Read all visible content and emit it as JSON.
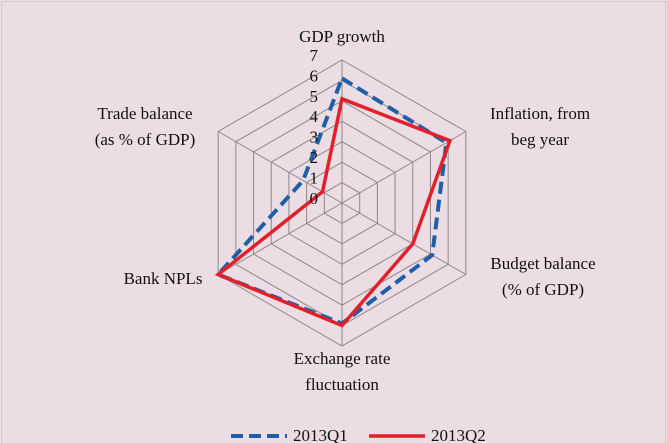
{
  "chart_data": {
    "type": "radar",
    "categories": [
      [
        "GDP growth"
      ],
      [
        "Inflation, from",
        "beg year"
      ],
      [
        "Budget balance",
        "(% of GDP)"
      ],
      [
        "Exchange rate",
        "fluctuation"
      ],
      [
        "Bank NPLs"
      ],
      [
        "Trade balance",
        "(as % of GDP)"
      ]
    ],
    "series": [
      {
        "name": "2013Q1",
        "color": "#1f5fa8",
        "dashed": true,
        "values": [
          6.1,
          5.9,
          5.1,
          5.9,
          7,
          2.2
        ]
      },
      {
        "name": "2013Q2",
        "color": "#e0202a",
        "dashed": false,
        "values": [
          5.1,
          6.1,
          4.0,
          6.0,
          7,
          1.1
        ]
      }
    ],
    "ylim": [
      0,
      7
    ],
    "yticks": [
      0,
      1,
      2,
      3,
      4,
      5,
      6,
      7
    ],
    "grid": true,
    "legend": "bottom"
  }
}
